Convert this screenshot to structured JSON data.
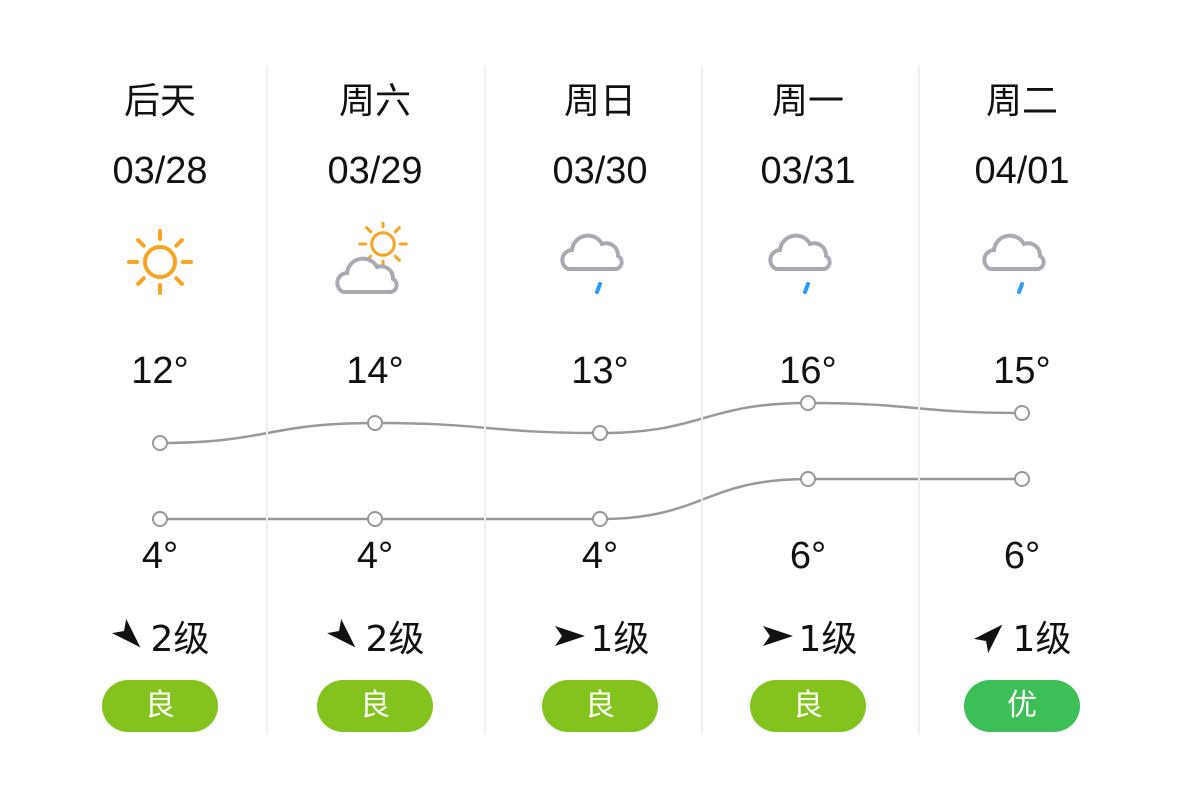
{
  "days": [
    {
      "day": "后天",
      "date": "03/28",
      "weather_icon": "sunny-icon",
      "high": "12°",
      "low": "4°",
      "high_value": 12,
      "low_value": 4,
      "wind_direction_deg": 45,
      "wind": "2级",
      "aqi": "良",
      "aqi_color": "#84c31e"
    },
    {
      "day": "周六",
      "date": "03/29",
      "weather_icon": "partly-cloudy-icon",
      "high": "14°",
      "low": "4°",
      "high_value": 14,
      "low_value": 4,
      "wind_direction_deg": 45,
      "wind": "2级",
      "aqi": "良",
      "aqi_color": "#84c31e"
    },
    {
      "day": "周日",
      "date": "03/30",
      "weather_icon": "light-rain-icon",
      "high": "13°",
      "low": "4°",
      "high_value": 13,
      "low_value": 4,
      "wind_direction_deg": 0,
      "wind": "1级",
      "aqi": "良",
      "aqi_color": "#84c31e"
    },
    {
      "day": "周一",
      "date": "03/31",
      "weather_icon": "light-rain-icon",
      "high": "16°",
      "low": "6°",
      "high_value": 16,
      "low_value": 6,
      "wind_direction_deg": 0,
      "wind": "1级",
      "aqi": "良",
      "aqi_color": "#84c31e"
    },
    {
      "day": "周二",
      "date": "04/01",
      "weather_icon": "light-rain-icon",
      "high": "15°",
      "low": "6°",
      "high_value": 15,
      "low_value": 6,
      "wind_direction_deg": -45,
      "wind": "1级",
      "aqi": "优",
      "aqi_color": "#3cbf57"
    }
  ],
  "colors": {
    "sun": "#f5a623",
    "cloud": "#a9a9b3",
    "rain": "#2a9df4",
    "line": "#999999"
  }
}
